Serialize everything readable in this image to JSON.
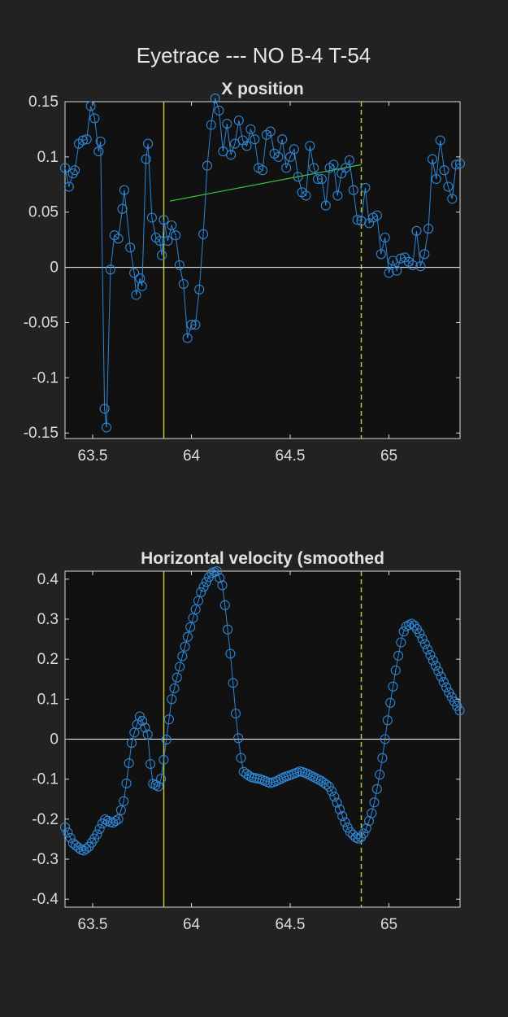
{
  "figure": {
    "title": "Eyetrace --- NO B-4 T-54"
  },
  "colors": {
    "background": "#222222",
    "axes_background": "#111111",
    "trace": "#2e86d4",
    "fit_line": "#3cc83c",
    "event_line": "#c8c23a",
    "zero_line": "#ffffff"
  },
  "chart_data": [
    {
      "type": "line",
      "title": "X position",
      "xlabel": "",
      "ylabel": "",
      "xlim": [
        63.36,
        65.36
      ],
      "ylim": [
        -0.155,
        0.15
      ],
      "xticks": [
        63.5,
        64,
        64.5,
        65
      ],
      "xtick_labels": [
        "63.5",
        "64",
        "64.5",
        "65"
      ],
      "yticks": [
        0.15,
        0.1,
        0.05,
        0,
        -0.05,
        -0.1,
        -0.15
      ],
      "ytick_labels": [
        "0.15",
        "0.1",
        "0.05",
        "0",
        "-0.05",
        "-0.1",
        "-0.15"
      ],
      "grid": false,
      "markers": "circle",
      "zero_line": true,
      "vlines": [
        {
          "x": 63.86,
          "style": "solid"
        },
        {
          "x": 64.86,
          "style": "dashed"
        }
      ],
      "fit_line": {
        "x": [
          63.89,
          64.86
        ],
        "y": [
          0.06,
          0.093
        ]
      },
      "series": [
        {
          "x": [
            63.36,
            63.38,
            63.4,
            63.41,
            63.43,
            63.45,
            63.47,
            63.49,
            63.51,
            63.53,
            63.54,
            63.56,
            63.57,
            63.59,
            63.61,
            63.63,
            63.65,
            63.66,
            63.69,
            63.71,
            63.72,
            63.74,
            63.75,
            63.77,
            63.78,
            63.8,
            63.82,
            63.84,
            63.85,
            63.86,
            63.88,
            63.9,
            63.92,
            63.94,
            63.96,
            63.98,
            64.0,
            64.02,
            64.04,
            64.06,
            64.08,
            64.1,
            64.12,
            64.14,
            64.16,
            64.18,
            64.2,
            64.22,
            64.24,
            64.26,
            64.28,
            64.3,
            64.32,
            64.34,
            64.36,
            64.38,
            64.4,
            64.42,
            64.44,
            64.46,
            64.48,
            64.5,
            64.52,
            64.54,
            64.56,
            64.58,
            64.6,
            64.62,
            64.64,
            64.66,
            64.68,
            64.7,
            64.72,
            64.74,
            64.76,
            64.78,
            64.8,
            64.82,
            64.84,
            64.86,
            64.88,
            64.9,
            64.92,
            64.94,
            64.96,
            64.98,
            65.0,
            65.02,
            65.04,
            65.06,
            65.08,
            65.1,
            65.12,
            65.14,
            65.16,
            65.18,
            65.2,
            65.22,
            65.24,
            65.26,
            65.28,
            65.3,
            65.32,
            65.34,
            65.36
          ],
          "y": [
            0.09,
            0.073,
            0.085,
            0.088,
            0.112,
            0.115,
            0.116,
            0.146,
            0.135,
            0.105,
            0.114,
            -0.128,
            -0.145,
            -0.002,
            0.029,
            0.026,
            0.053,
            0.07,
            0.018,
            -0.005,
            -0.025,
            -0.01,
            -0.017,
            0.098,
            0.112,
            0.045,
            0.027,
            0.024,
            0.011,
            0.043,
            0.024,
            0.038,
            0.029,
            0.002,
            -0.015,
            -0.064,
            -0.052,
            -0.052,
            -0.02,
            0.03,
            0.092,
            0.129,
            0.153,
            0.142,
            0.105,
            0.13,
            0.102,
            0.112,
            0.133,
            0.115,
            0.11,
            0.125,
            0.116,
            0.09,
            0.088,
            0.12,
            0.123,
            0.103,
            0.1,
            0.116,
            0.09,
            0.1,
            0.107,
            0.082,
            0.068,
            0.065,
            0.11,
            0.09,
            0.08,
            0.08,
            0.056,
            0.09,
            0.093,
            0.065,
            0.085,
            0.09,
            0.097,
            0.07,
            0.043,
            0.042,
            0.072,
            0.04,
            0.045,
            0.047,
            0.012,
            0.027,
            -0.005,
            0.006,
            -0.003,
            0.008,
            0.009,
            0.005,
            0.002,
            0.033,
            0.001,
            0.012,
            0.035,
            0.098,
            0.08,
            0.115,
            0.088,
            0.073,
            0.062,
            0.093,
            0.094
          ]
        }
      ]
    },
    {
      "type": "line",
      "title": "Horizontal velocity (smoothed",
      "xlabel": "",
      "ylabel": "",
      "xlim": [
        63.36,
        65.36
      ],
      "ylim": [
        -0.42,
        0.42
      ],
      "xticks": [
        63.5,
        64,
        64.5,
        65
      ],
      "xtick_labels": [
        "63.5",
        "64",
        "64.5",
        "65"
      ],
      "yticks": [
        0.4,
        0.3,
        0.2,
        0.1,
        0,
        -0.1,
        -0.2,
        -0.3,
        -0.4
      ],
      "ytick_labels": [
        "0.4",
        "0.3",
        "0.2",
        "0.1",
        "0",
        "-0.1",
        "-0.2",
        "-0.3",
        "-0.4"
      ],
      "grid": false,
      "markers": "circle",
      "zero_line": true,
      "vlines": [
        {
          "x": 63.86,
          "style": "solid"
        },
        {
          "x": 64.86,
          "style": "dashed"
        }
      ],
      "series": [
        {
          "knots": {
            "x": [
              63.36,
              63.4,
              63.45,
              63.48,
              63.52,
              63.56,
              63.6,
              63.63,
              63.66,
              63.7,
              63.74,
              63.78,
              63.8,
              63.84,
              63.86,
              63.9,
              63.95,
              64.0,
              64.05,
              64.1,
              64.13,
              64.16,
              64.2,
              64.23,
              64.26,
              64.3,
              64.35,
              64.4,
              64.43,
              64.47,
              64.5,
              64.55,
              64.58,
              64.62,
              64.66,
              64.7,
              64.73,
              64.77,
              64.8,
              64.84,
              64.86,
              64.88,
              64.91,
              64.93,
              64.96,
              64.98,
              65.0,
              65.02,
              65.04,
              65.06,
              65.08,
              65.12,
              65.15,
              65.2,
              65.25,
              65.3,
              65.36
            ],
            "y": [
              -0.22,
              -0.26,
              -0.28,
              -0.27,
              -0.24,
              -0.2,
              -0.21,
              -0.2,
              -0.15,
              0.0,
              0.06,
              0.01,
              -0.11,
              -0.12,
              -0.05,
              0.1,
              0.2,
              0.29,
              0.37,
              0.415,
              0.42,
              0.38,
              0.2,
              0.03,
              -0.08,
              -0.095,
              -0.1,
              -0.11,
              -0.105,
              -0.095,
              -0.09,
              -0.08,
              -0.085,
              -0.095,
              -0.105,
              -0.12,
              -0.15,
              -0.2,
              -0.23,
              -0.25,
              -0.245,
              -0.23,
              -0.19,
              -0.15,
              -0.07,
              0.0,
              0.07,
              0.13,
              0.19,
              0.24,
              0.28,
              0.29,
              0.27,
              0.22,
              0.17,
              0.12,
              0.07
            ]
          },
          "sample_step": 0.0135
        }
      ]
    }
  ]
}
